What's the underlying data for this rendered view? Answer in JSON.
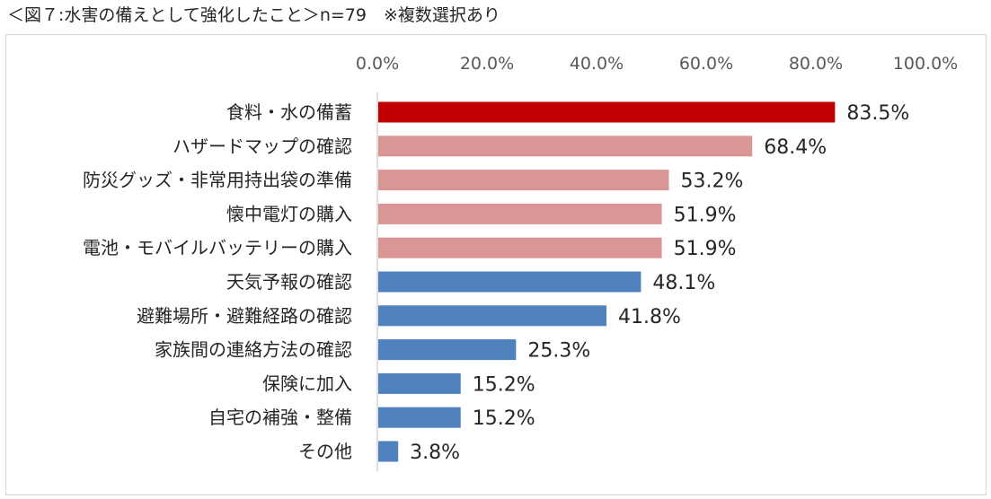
{
  "chart_data": {
    "type": "bar",
    "orientation": "horizontal",
    "title": "＜図７:水害の備えとして強化したこと＞n=79　※複数選択あり",
    "xlabel": "",
    "ylabel": "",
    "xlim": [
      0,
      100
    ],
    "ticks": [
      0,
      20,
      40,
      60,
      80,
      100
    ],
    "tick_labels": [
      "0.0%",
      "20.0%",
      "40.0%",
      "60.0%",
      "80.0%",
      "100.0%"
    ],
    "tick_position": "top",
    "grid": false,
    "categories": [
      "食料・水の備蓄",
      "ハザードマップの確認",
      "防災グッズ・非常用持出袋の準備",
      "懐中電灯の購入",
      "電池・モバイルバッテリーの購入",
      "天気予報の確認",
      "避難場所・避難経路の確認",
      "家族間の連絡方法の確認",
      "保険に加入",
      "自宅の補強・整備",
      "その他"
    ],
    "values": [
      83.5,
      68.4,
      53.2,
      51.9,
      51.9,
      48.1,
      41.8,
      25.3,
      15.2,
      15.2,
      3.8
    ],
    "value_labels": [
      "83.5%",
      "68.4%",
      "53.2%",
      "51.9%",
      "51.9%",
      "48.1%",
      "41.8%",
      "25.3%",
      "15.2%",
      "15.2%",
      "3.8%"
    ],
    "bar_colors": [
      "#c00000",
      "#da9694",
      "#da9694",
      "#da9694",
      "#da9694",
      "#4f81bd",
      "#4f81bd",
      "#4f81bd",
      "#4f81bd",
      "#4f81bd",
      "#4f81bd"
    ]
  }
}
